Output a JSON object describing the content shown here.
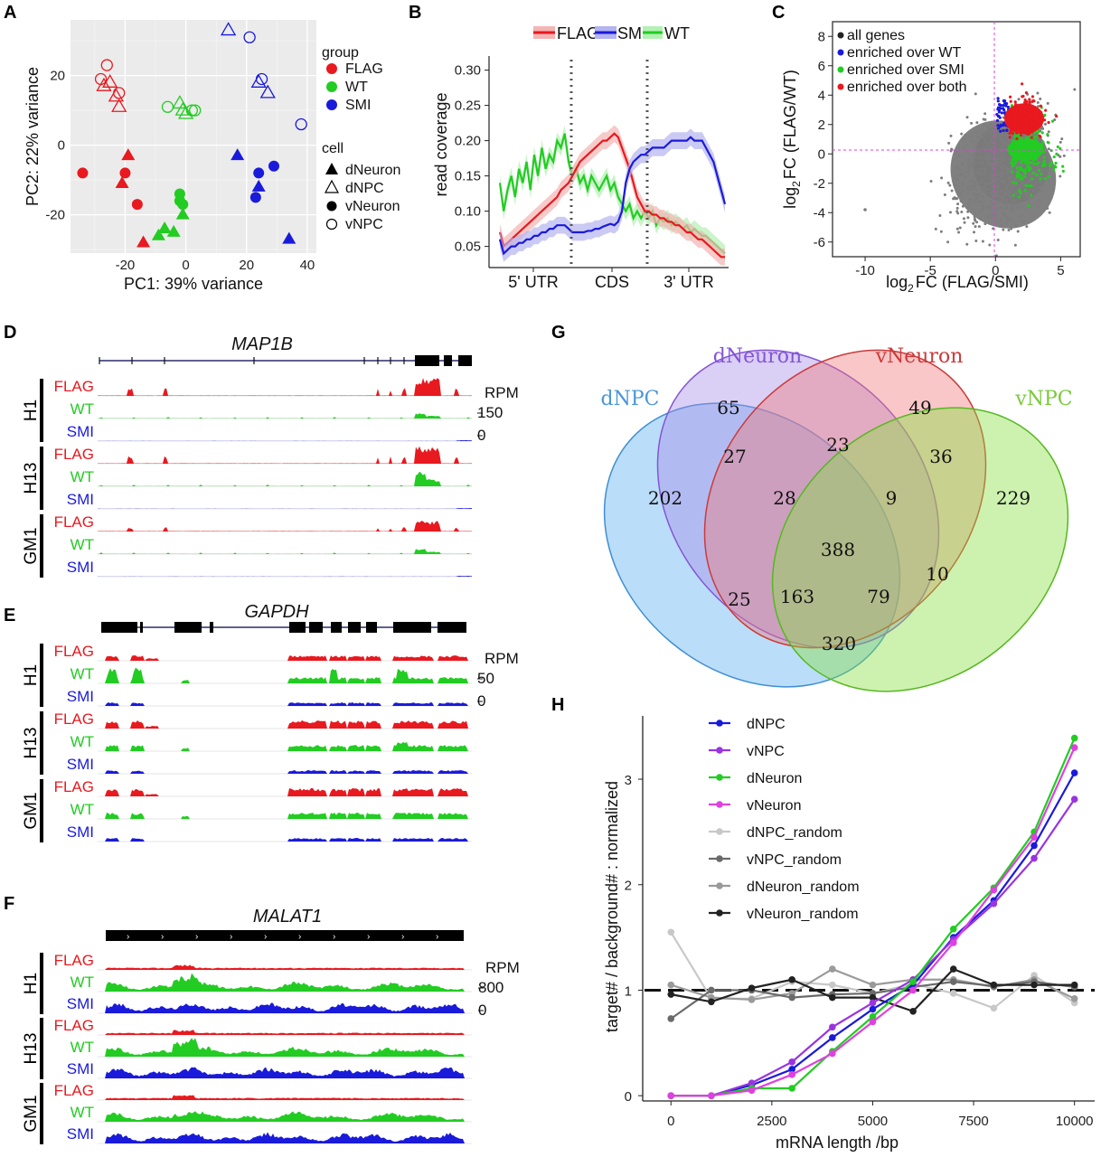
{
  "panel_labels": {
    "a": "A",
    "b": "B",
    "c": "C",
    "d": "D",
    "e": "E",
    "f": "F",
    "g": "G",
    "h": "H"
  },
  "colors": {
    "flag": "#e8191f",
    "wt": "#22cc22",
    "smi": "#1a1adb",
    "grey": "#7d7d7d",
    "magenta": "#e040e0",
    "violet": "#9a33e0"
  },
  "panelA": {
    "xlabel": "PC1: 39% variance",
    "ylabel": "PC2: 22% variance",
    "xticks": [
      "-20",
      "0",
      "20",
      "40"
    ],
    "yticks": [
      "20",
      "0",
      "-20"
    ],
    "legend_group_title": "group",
    "groups": [
      "FLAG",
      "WT",
      "SMI"
    ],
    "legend_cell_title": "cell",
    "cells": [
      "dNeuron",
      "dNPC",
      "vNeuron",
      "vNPC"
    ],
    "chart_data": {
      "type": "scatter",
      "xlim": [
        -38,
        43
      ],
      "ylim": [
        -31,
        36
      ],
      "points": [
        {
          "g": "FLAG",
          "c": "dNPC",
          "x": -25,
          "y": 18
        },
        {
          "g": "FLAG",
          "c": "dNPC",
          "x": -27,
          "y": 17
        },
        {
          "g": "FLAG",
          "c": "dNPC",
          "x": -23,
          "y": 14
        },
        {
          "g": "FLAG",
          "c": "dNPC",
          "x": -22,
          "y": 11
        },
        {
          "g": "FLAG",
          "c": "vNPC",
          "x": -26,
          "y": 23
        },
        {
          "g": "FLAG",
          "c": "vNPC",
          "x": -28,
          "y": 19
        },
        {
          "g": "FLAG",
          "c": "vNPC",
          "x": -22,
          "y": 15
        },
        {
          "g": "FLAG",
          "c": "dNeuron",
          "x": -19,
          "y": -3
        },
        {
          "g": "FLAG",
          "c": "dNeuron",
          "x": -21,
          "y": -11
        },
        {
          "g": "FLAG",
          "c": "dNeuron",
          "x": -14,
          "y": -28
        },
        {
          "g": "FLAG",
          "c": "vNeuron",
          "x": -34,
          "y": -8
        },
        {
          "g": "FLAG",
          "c": "vNeuron",
          "x": -20,
          "y": -8
        },
        {
          "g": "FLAG",
          "c": "vNeuron",
          "x": -16,
          "y": -17
        },
        {
          "g": "WT",
          "c": "dNPC",
          "x": -2,
          "y": 12
        },
        {
          "g": "WT",
          "c": "dNPC",
          "x": -1,
          "y": 10
        },
        {
          "g": "WT",
          "c": "dNPC",
          "x": 0,
          "y": 9
        },
        {
          "g": "WT",
          "c": "vNPC",
          "x": -6,
          "y": 11
        },
        {
          "g": "WT",
          "c": "vNPC",
          "x": 2,
          "y": 10
        },
        {
          "g": "WT",
          "c": "vNPC",
          "x": 3,
          "y": 10
        },
        {
          "g": "WT",
          "c": "dNeuron",
          "x": -9,
          "y": -26
        },
        {
          "g": "WT",
          "c": "dNeuron",
          "x": -7,
          "y": -24
        },
        {
          "g": "WT",
          "c": "dNeuron",
          "x": -4,
          "y": -25
        },
        {
          "g": "WT",
          "c": "dNeuron",
          "x": -1,
          "y": -20
        },
        {
          "g": "WT",
          "c": "vNeuron",
          "x": -2,
          "y": -14
        },
        {
          "g": "WT",
          "c": "vNeuron",
          "x": -2,
          "y": -16
        },
        {
          "g": "WT",
          "c": "vNeuron",
          "x": -1,
          "y": -17
        },
        {
          "g": "SMI",
          "c": "dNPC",
          "x": 14,
          "y": 33
        },
        {
          "g": "SMI",
          "c": "dNPC",
          "x": 24,
          "y": 18
        },
        {
          "g": "SMI",
          "c": "dNPC",
          "x": 27,
          "y": 15
        },
        {
          "g": "SMI",
          "c": "vNPC",
          "x": 21,
          "y": 31
        },
        {
          "g": "SMI",
          "c": "vNPC",
          "x": 25,
          "y": 19
        },
        {
          "g": "SMI",
          "c": "vNPC",
          "x": 38,
          "y": 6
        },
        {
          "g": "SMI",
          "c": "dNeuron",
          "x": 17,
          "y": -3
        },
        {
          "g": "SMI",
          "c": "dNeuron",
          "x": 24,
          "y": -12
        },
        {
          "g": "SMI",
          "c": "dNeuron",
          "x": 34,
          "y": -27
        },
        {
          "g": "SMI",
          "c": "vNeuron",
          "x": 24,
          "y": -8
        },
        {
          "g": "SMI",
          "c": "vNeuron",
          "x": 29,
          "y": -6
        },
        {
          "g": "SMI",
          "c": "vNeuron",
          "x": 23,
          "y": -15
        }
      ]
    }
  },
  "panelB": {
    "ylabel": "read coverage",
    "yticks": [
      "0.30",
      "0.25",
      "0.20",
      "0.15",
      "0.10",
      "0.05"
    ],
    "regions": [
      "5' UTR",
      "CDS",
      "3' UTR"
    ],
    "legend": [
      "FLAG",
      "SMI",
      "WT"
    ],
    "chart_data": {
      "type": "line",
      "ylim": [
        0.02,
        0.32
      ],
      "x_bins": 60,
      "series": [
        {
          "name": "FLAG",
          "values": [
            0.07,
            0.05,
            0.055,
            0.06,
            0.065,
            0.07,
            0.075,
            0.08,
            0.085,
            0.09,
            0.095,
            0.1,
            0.105,
            0.11,
            0.115,
            0.12,
            0.13,
            0.135,
            0.14,
            0.15,
            0.16,
            0.17,
            0.175,
            0.18,
            0.185,
            0.19,
            0.195,
            0.2,
            0.2,
            0.205,
            0.21,
            0.205,
            0.19,
            0.175,
            0.16,
            0.14,
            0.12,
            0.11,
            0.1,
            0.1,
            0.095,
            0.095,
            0.09,
            0.09,
            0.085,
            0.085,
            0.08,
            0.08,
            0.075,
            0.07,
            0.07,
            0.065,
            0.06,
            0.06,
            0.055,
            0.05,
            0.045,
            0.04,
            0.035,
            0.035
          ]
        },
        {
          "name": "SMI",
          "values": [
            0.06,
            0.04,
            0.045,
            0.05,
            0.05,
            0.055,
            0.055,
            0.06,
            0.06,
            0.065,
            0.065,
            0.07,
            0.07,
            0.075,
            0.075,
            0.08,
            0.08,
            0.08,
            0.075,
            0.07,
            0.07,
            0.07,
            0.07,
            0.072,
            0.072,
            0.075,
            0.075,
            0.078,
            0.08,
            0.082,
            0.08,
            0.085,
            0.1,
            0.14,
            0.16,
            0.17,
            0.175,
            0.18,
            0.18,
            0.185,
            0.19,
            0.19,
            0.19,
            0.19,
            0.195,
            0.2,
            0.2,
            0.2,
            0.2,
            0.2,
            0.205,
            0.2,
            0.2,
            0.2,
            0.19,
            0.18,
            0.17,
            0.15,
            0.13,
            0.11
          ]
        },
        {
          "name": "WT",
          "values": [
            0.14,
            0.1,
            0.13,
            0.15,
            0.12,
            0.16,
            0.14,
            0.17,
            0.13,
            0.18,
            0.15,
            0.19,
            0.16,
            0.18,
            0.17,
            0.2,
            0.19,
            0.21,
            0.17,
            0.15,
            0.16,
            0.14,
            0.15,
            0.13,
            0.15,
            0.14,
            0.13,
            0.14,
            0.15,
            0.13,
            0.14,
            0.12,
            0.11,
            0.1,
            0.11,
            0.09,
            0.1,
            0.09,
            0.1,
            0.09,
            0.1,
            0.08,
            0.09,
            0.085,
            0.09,
            0.08,
            0.085,
            0.08,
            0.075,
            0.08,
            0.07,
            0.075,
            0.07,
            0.065,
            0.065,
            0.06,
            0.055,
            0.05,
            0.045,
            0.04
          ]
        }
      ]
    }
  },
  "panelC": {
    "xlabel_pre": "log",
    "xlabel_sub": "2",
    "xlabel_post": "FC (FLAG/SMI)",
    "ylabel_pre": "log",
    "ylabel_sub": "2",
    "ylabel_post": "FC (FLAG/WT)",
    "xticks": [
      "-10",
      "-5",
      "0",
      "5"
    ],
    "yticks": [
      "8",
      "6",
      "4",
      "2",
      "0",
      "-2",
      "-4",
      "-6"
    ],
    "legend": [
      "all genes",
      "enriched over WT",
      "enriched over SMI",
      "enriched over both"
    ],
    "chart_data": {
      "type": "scatter",
      "xlim": [
        -12.5,
        6.5
      ],
      "ylim": [
        -7,
        9
      ],
      "series": [
        "all genes",
        "enriched over WT",
        "enriched over SMI",
        "enriched over both"
      ],
      "note": "dense point clouds"
    }
  },
  "panelD": {
    "gene": "MAP1B",
    "scale_unit": "RPM",
    "scale_top": "150",
    "scale_bottom": "0",
    "samples": [
      "H1",
      "H13",
      "GM1"
    ],
    "tracks": [
      "FLAG",
      "WT",
      "SMI"
    ]
  },
  "panelE": {
    "gene": "GAPDH",
    "scale_unit": "RPM",
    "scale_top": "50",
    "scale_bottom": "0",
    "samples": [
      "H1",
      "H13",
      "GM1"
    ],
    "tracks": [
      "FLAG",
      "WT",
      "SMI"
    ]
  },
  "panelF": {
    "gene": "MALAT1",
    "scale_unit": "RPM",
    "scale_top": "800",
    "scale_bottom": "0",
    "samples": [
      "H1",
      "H13",
      "GM1"
    ],
    "tracks": [
      "FLAG",
      "WT",
      "SMI"
    ]
  },
  "panelG": {
    "sets": [
      "dNPC",
      "dNeuron",
      "vNeuron",
      "vNPC"
    ],
    "counts": {
      "dNPC_only": "202",
      "dNeuron_only": "65",
      "vNeuron_only": "49",
      "vNPC_only": "229",
      "dNPC_dNeuron": "27",
      "dNeuron_vNeuron": "23",
      "vNeuron_vNPC": "36",
      "dNPC_dNeuron_vNeuron": "28",
      "dNeuron_vNeuron_vNPC": "9",
      "all": "388",
      "dNPC_vNeuron": "25",
      "dNeuron_vNPC": "10",
      "dNPC_vNeuron_vNPC": "163",
      "dNPC_dNeuron_vNPC": "79",
      "dNPC_vNPC": "320"
    }
  },
  "panelH": {
    "xlabel": "mRNA length /bp",
    "ylabel": "target# / background# : normalized",
    "xticks": [
      "0",
      "2500",
      "5000",
      "7500",
      "10000"
    ],
    "yticks": [
      "0",
      "1",
      "2",
      "3"
    ],
    "chart_data": {
      "type": "line",
      "x": [
        0,
        1000,
        2000,
        3000,
        4000,
        5000,
        6000,
        7000,
        8000,
        9000,
        10000
      ],
      "xlim": [
        -700,
        10500
      ],
      "ylim": [
        -0.05,
        3.6
      ],
      "reference_line": 1,
      "series": [
        {
          "name": "dNPC",
          "color": "#1a1adb",
          "values": [
            0,
            0,
            0.1,
            0.25,
            0.55,
            0.82,
            1.05,
            1.5,
            1.85,
            2.37,
            3.06
          ]
        },
        {
          "name": "vNPC",
          "color": "#9a33e0",
          "values": [
            0,
            0,
            0.12,
            0.32,
            0.65,
            0.88,
            1.1,
            1.48,
            1.82,
            2.25,
            2.81
          ]
        },
        {
          "name": "dNeuron",
          "color": "#22cc22",
          "values": [
            0,
            0,
            0.07,
            0.07,
            0.42,
            0.75,
            1.08,
            1.58,
            1.97,
            2.5,
            3.39
          ]
        },
        {
          "name": "vNeuron",
          "color": "#e040e0",
          "values": [
            0,
            0,
            0.05,
            0.2,
            0.4,
            0.7,
            1.0,
            1.45,
            1.95,
            2.45,
            3.3
          ]
        },
        {
          "name": "dNPC_random",
          "color": "#c8c8c8",
          "values": [
            1.55,
            0.92,
            0.92,
            1.08,
            1.05,
            0.97,
            1.06,
            0.97,
            0.83,
            1.14,
            0.88
          ]
        },
        {
          "name": "vNPC_random",
          "color": "#6a6a6a",
          "values": [
            0.73,
            1.0,
            1.0,
            0.93,
            0.96,
            0.97,
            1.03,
            1.08,
            1.04,
            1.08,
            1.03
          ]
        },
        {
          "name": "dNeuron_random",
          "color": "#9a9a9a",
          "values": [
            1.05,
            0.93,
            0.91,
            0.97,
            1.2,
            1.05,
            1.1,
            1.1,
            1.03,
            1.1,
            0.92
          ]
        },
        {
          "name": "vNeuron_random",
          "color": "#222222",
          "values": [
            0.96,
            0.89,
            1.02,
            1.1,
            0.93,
            0.93,
            0.8,
            1.2,
            1.05,
            1.05,
            1.05
          ]
        }
      ]
    }
  }
}
